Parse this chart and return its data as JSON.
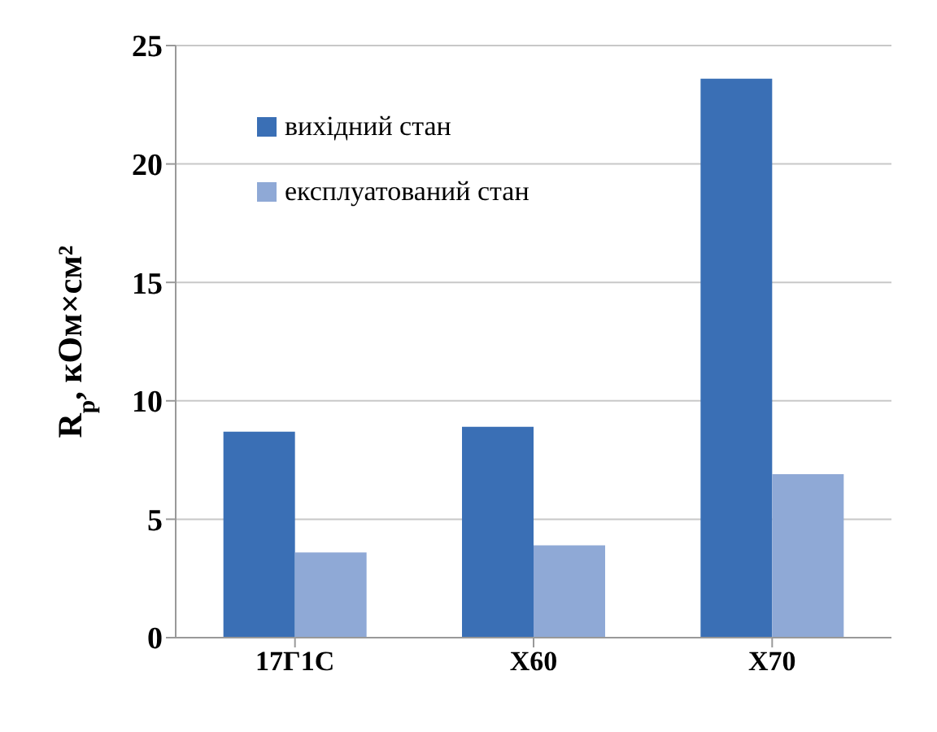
{
  "chart_data": {
    "type": "bar",
    "ylabel": "R$_{p}$, кОм×см²",
    "categories": [
      "17Г1С",
      "X60",
      "X70"
    ],
    "series": [
      {
        "name": "вихідний стан",
        "color": "#3a6fb5",
        "values": [
          8.7,
          8.9,
          23.6
        ]
      },
      {
        "name": "експлуатований стан",
        "color": "#8fa9d6",
        "values": [
          3.6,
          3.9,
          6.9
        ]
      }
    ],
    "ylim": [
      0,
      25
    ],
    "yticks": [
      0,
      5,
      10,
      15,
      20,
      25
    ],
    "grid": "y",
    "legend": "top left"
  }
}
